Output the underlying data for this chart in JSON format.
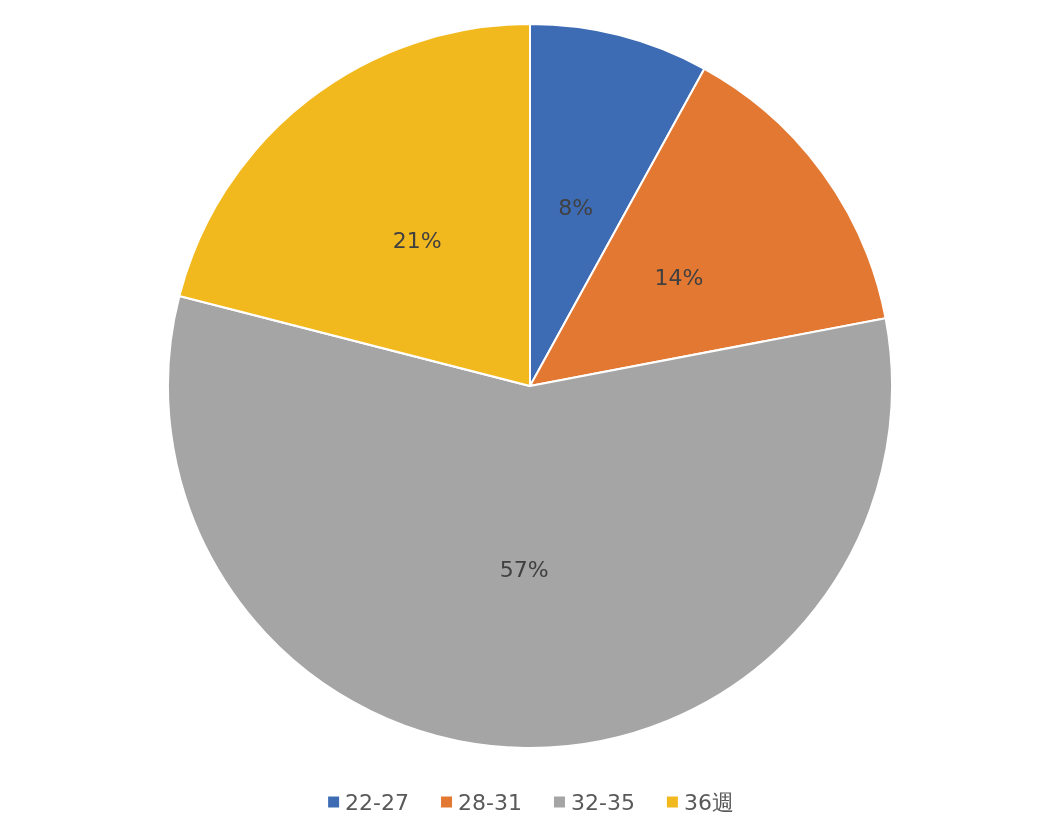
{
  "chart_data": {
    "type": "pie",
    "categories": [
      "22-27",
      "28-31",
      "32-35",
      "36週"
    ],
    "values": [
      8,
      14,
      57,
      21
    ],
    "colors": [
      "#3e6cb4",
      "#e37833",
      "#a5a5a5",
      "#f2b91e"
    ],
    "value_labels": [
      "8%",
      "14%",
      "57%",
      "21%"
    ],
    "legend": "bottom"
  }
}
